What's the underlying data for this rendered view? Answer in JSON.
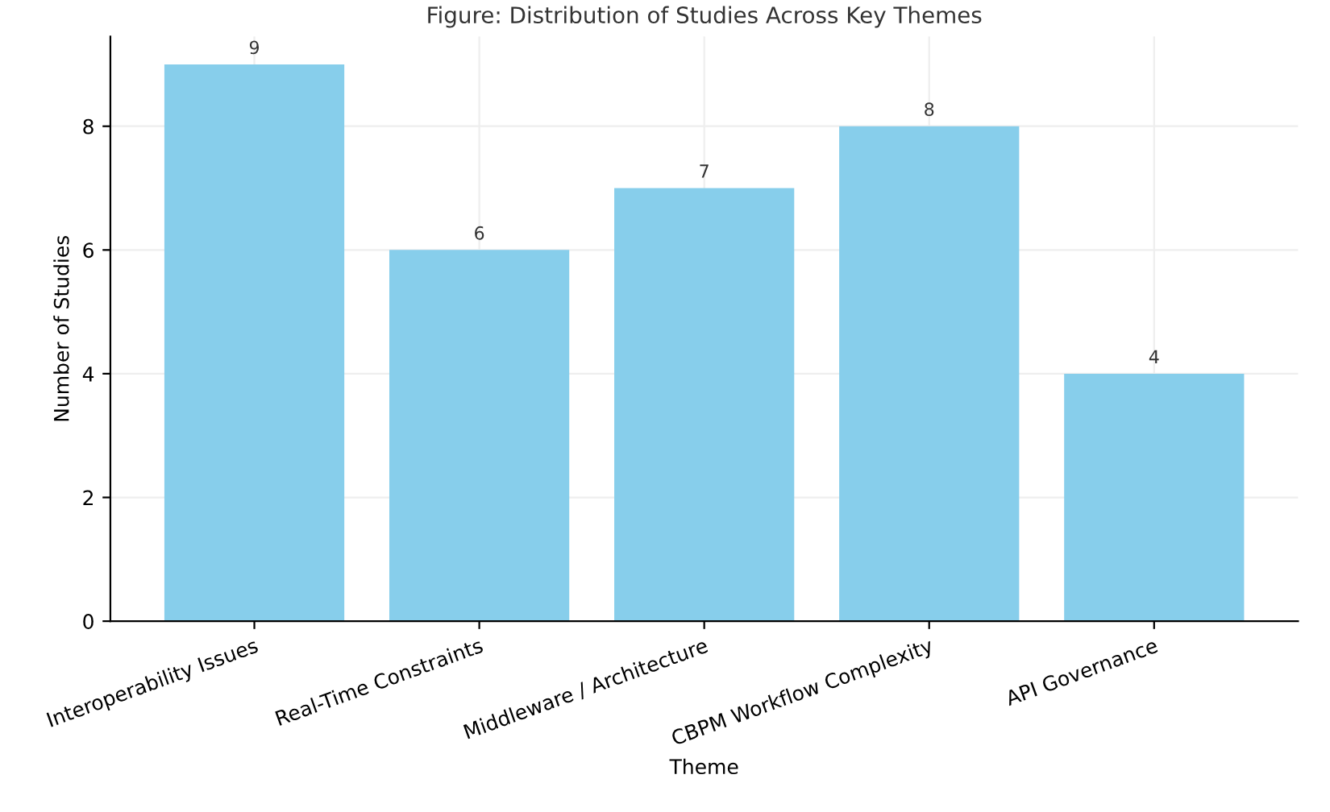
{
  "chart_data": {
    "type": "bar",
    "title": "Figure: Distribution of Studies Across Key Themes",
    "xlabel": "Theme",
    "ylabel": "Number of Studies",
    "categories": [
      "Interoperability Issues",
      "Real-Time Constraints",
      "Middleware / Architecture",
      "CBPM Workflow Complexity",
      "API Governance"
    ],
    "values": [
      9,
      6,
      7,
      8,
      4
    ],
    "color": "#87ceeb",
    "data_labels": true,
    "ylim": [
      0,
      9.45
    ],
    "yticks": [
      0,
      2,
      4,
      6,
      8
    ],
    "grid": true
  }
}
